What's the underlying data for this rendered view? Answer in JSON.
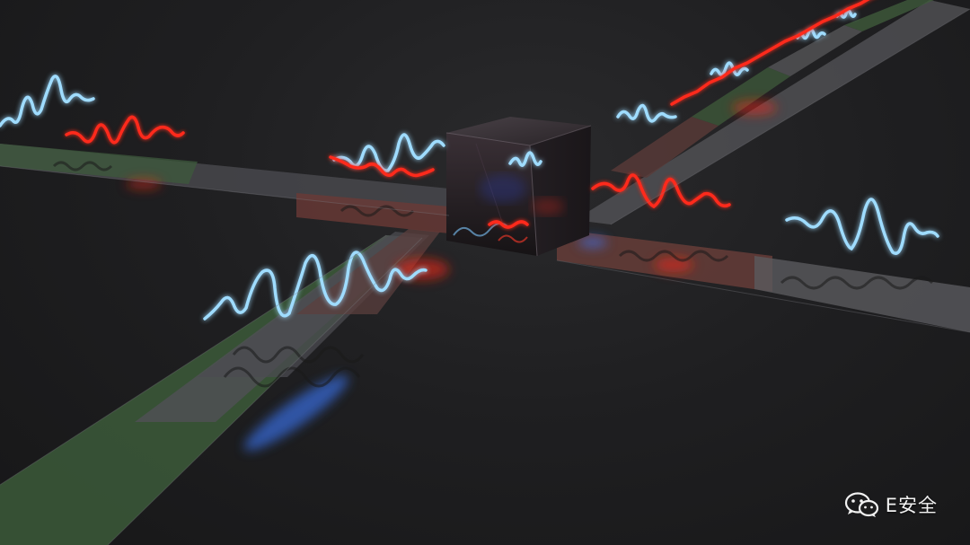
{
  "watermark": {
    "text": "E安全",
    "icon": "wechat-icon"
  },
  "colors": {
    "background": "#1c1c1d",
    "blue_wave": "#8fd3ff",
    "blue_glow": "#3aa8ff",
    "red_wave": "#ff2a1a",
    "track_gray": "#5a5a5e",
    "track_green": "#3c5a3a",
    "track_red": "#6a3a36",
    "cube": "#2a2428"
  }
}
